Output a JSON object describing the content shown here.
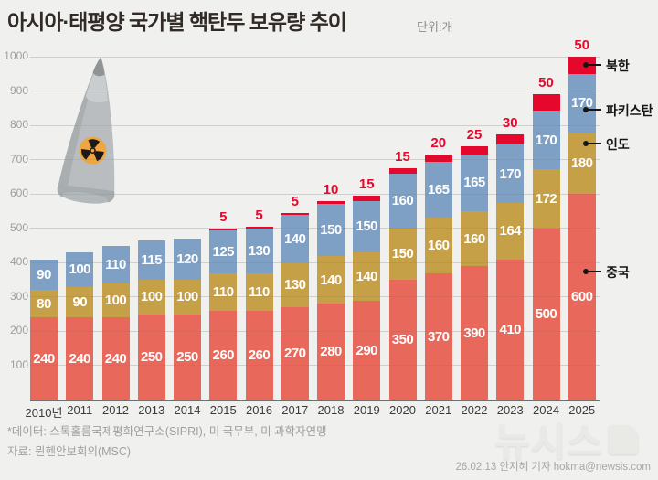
{
  "header": {
    "title": "아시아·태평양 국가별 핵탄두 보유량 추이",
    "unit": "단위:개"
  },
  "chart_data": {
    "type": "bar",
    "stacked": true,
    "title": "아시아·태평양 국가별 핵탄두 보유량 추이",
    "unit_label": "단위:개",
    "categories": [
      "2010년",
      "2011",
      "2012",
      "2013",
      "2014",
      "2015",
      "2016",
      "2017",
      "2018",
      "2019",
      "2020",
      "2021",
      "2022",
      "2023",
      "2024",
      "2025"
    ],
    "series": [
      {
        "name": "중국",
        "color": "#e8695c",
        "values": [
          240,
          240,
          240,
          250,
          250,
          260,
          260,
          270,
          280,
          290,
          350,
          370,
          390,
          410,
          500,
          600
        ]
      },
      {
        "name": "인도",
        "color": "#c6a046",
        "values": [
          80,
          90,
          100,
          100,
          100,
          110,
          110,
          130,
          140,
          140,
          150,
          160,
          160,
          164,
          172,
          180
        ]
      },
      {
        "name": "파키스탄",
        "color": "#7fa0c5",
        "values": [
          90,
          100,
          110,
          115,
          120,
          125,
          130,
          140,
          150,
          150,
          160,
          165,
          165,
          170,
          170,
          170
        ]
      },
      {
        "name": "북한",
        "color": "#e5082c",
        "values": [
          0,
          0,
          0,
          0,
          0,
          5,
          5,
          5,
          10,
          15,
          15,
          20,
          25,
          30,
          50,
          50
        ]
      }
    ],
    "top_labels_series": "북한",
    "ylim": [
      0,
      1000
    ],
    "yticks": [
      100,
      200,
      300,
      400,
      500,
      600,
      700,
      800,
      900,
      1000
    ],
    "grid": true,
    "annotations": [
      {
        "label": "북한",
        "anchor": 975
      },
      {
        "label": "파키스탄",
        "anchor": 845
      },
      {
        "label": "인도",
        "anchor": 747
      },
      {
        "label": "중국",
        "anchor": 374
      }
    ]
  },
  "footer": {
    "data_note": "*데이터: 스톡홀름국제평화연구소(SIPRI), 미 국무부, 미 과학자연맹",
    "source_note": "자료: 뮌헨안보회의(MSC)",
    "logo_text": "뉴시스",
    "credit": "26.02.13 안지혜 기자 hokma@newsis.com"
  }
}
